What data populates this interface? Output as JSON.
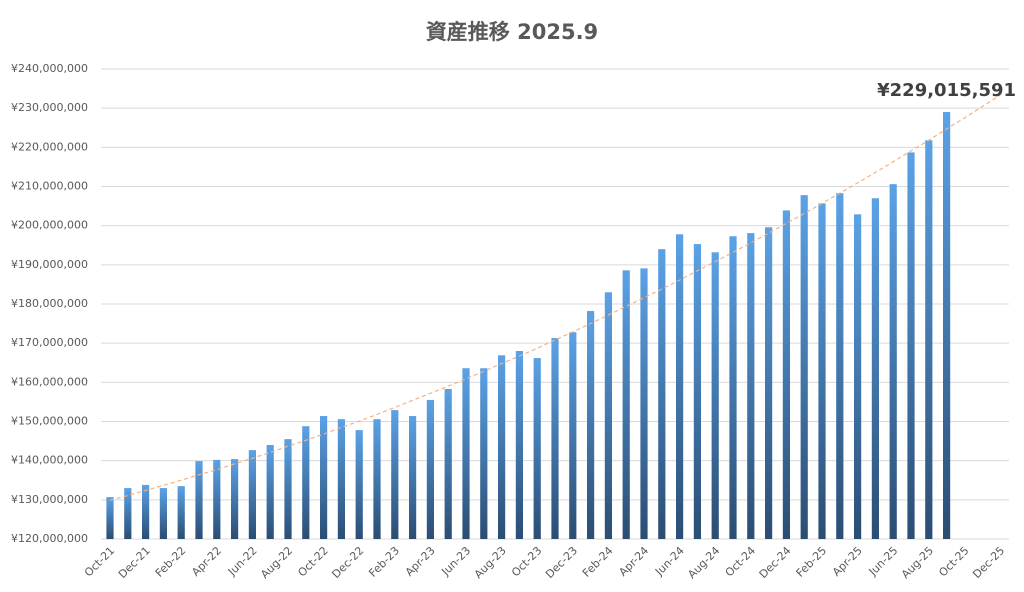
{
  "chart_data": {
    "type": "bar",
    "title": "資産推移 2025.9",
    "categories": [
      "Oct-21",
      null,
      "Dec-21",
      null,
      "Feb-22",
      null,
      "Apr-22",
      null,
      "Jun-22",
      null,
      "Aug-22",
      null,
      "Oct-22",
      null,
      "Dec-22",
      null,
      "Feb-23",
      null,
      "Apr-23",
      null,
      "Jun-23",
      null,
      "Aug-23",
      null,
      "Oct-23",
      null,
      "Dec-23",
      null,
      "Feb-24",
      null,
      "Apr-24",
      null,
      "Jun-24",
      null,
      "Aug-24",
      null,
      "Oct-24",
      null,
      "Dec-24",
      null,
      "Feb-25",
      null,
      "Apr-25",
      null,
      "Jun-25",
      null,
      "Aug-25",
      null,
      "Oct-25",
      null,
      "Dec-25"
    ],
    "values": [
      130700000,
      133000000,
      133800000,
      133000000,
      133500000,
      139900000,
      140200000,
      140400000,
      142700000,
      144000000,
      145500000,
      148800000,
      151400000,
      150600000,
      147800000,
      150600000,
      152900000,
      151400000,
      155500000,
      158300000,
      163600000,
      163600000,
      166900000,
      168000000,
      166200000,
      171300000,
      172800000,
      178200000,
      183000000,
      188600000,
      189100000,
      194000000,
      197800000,
      195300000,
      193200000,
      197300000,
      198100000,
      199600000,
      203900000,
      207800000,
      205700000,
      208300000,
      202900000,
      207000000,
      210600000,
      218700000,
      221800000,
      229015591,
      null,
      null,
      null
    ],
    "value_labels": [
      null,
      null,
      null,
      null,
      null,
      null,
      null,
      null,
      null,
      null,
      null,
      null,
      null,
      null,
      null,
      null,
      null,
      null,
      null,
      null,
      null,
      null,
      null,
      null,
      null,
      null,
      null,
      null,
      null,
      null,
      null,
      null,
      null,
      null,
      null,
      null,
      null,
      null,
      null,
      null,
      null,
      null,
      null,
      null,
      null,
      null,
      null,
      "¥229,015,591",
      null,
      null,
      null
    ],
    "gradient": [
      "#5ba2e6",
      "#2b4d73"
    ],
    "trendline": {
      "color": "#f4b183",
      "values": [
        129900000,
        131100000,
        132400000,
        133700000,
        135000000,
        136400000,
        137700000,
        139200000,
        140600000,
        142100000,
        143700000,
        145200000,
        146800000,
        148500000,
        150100000,
        151800000,
        153600000,
        155400000,
        157200000,
        159000000,
        160900000,
        162800000,
        164800000,
        166700000,
        168700000,
        170800000,
        172900000,
        175000000,
        177200000,
        179400000,
        181600000,
        183800000,
        186100000,
        188500000,
        190800000,
        193200000,
        195600000,
        198100000,
        200600000,
        203100000,
        205700000,
        208300000,
        210900000,
        213600000,
        216300000,
        219100000,
        221800000,
        224700000,
        227500000,
        230400000,
        233300000
      ]
    },
    "ylim": [
      120000000,
      240000000
    ],
    "yticks": [
      {
        "value": 120000000,
        "label": "¥120,000,000"
      },
      {
        "value": 130000000,
        "label": "¥130,000,000"
      },
      {
        "value": 140000000,
        "label": "¥140,000,000"
      },
      {
        "value": 150000000,
        "label": "¥150,000,000"
      },
      {
        "value": 160000000,
        "label": "¥160,000,000"
      },
      {
        "value": 170000000,
        "label": "¥170,000,000"
      },
      {
        "value": 180000000,
        "label": "¥180,000,000"
      },
      {
        "value": 190000000,
        "label": "¥190,000,000"
      },
      {
        "value": 200000000,
        "label": "¥200,000,000"
      },
      {
        "value": 210000000,
        "label": "¥210,000,000"
      },
      {
        "value": 220000000,
        "label": "¥220,000,000"
      },
      {
        "value": 230000000,
        "label": "¥230,000,000"
      },
      {
        "value": 240000000,
        "label": "¥240,000,000"
      }
    ],
    "grid": true
  }
}
